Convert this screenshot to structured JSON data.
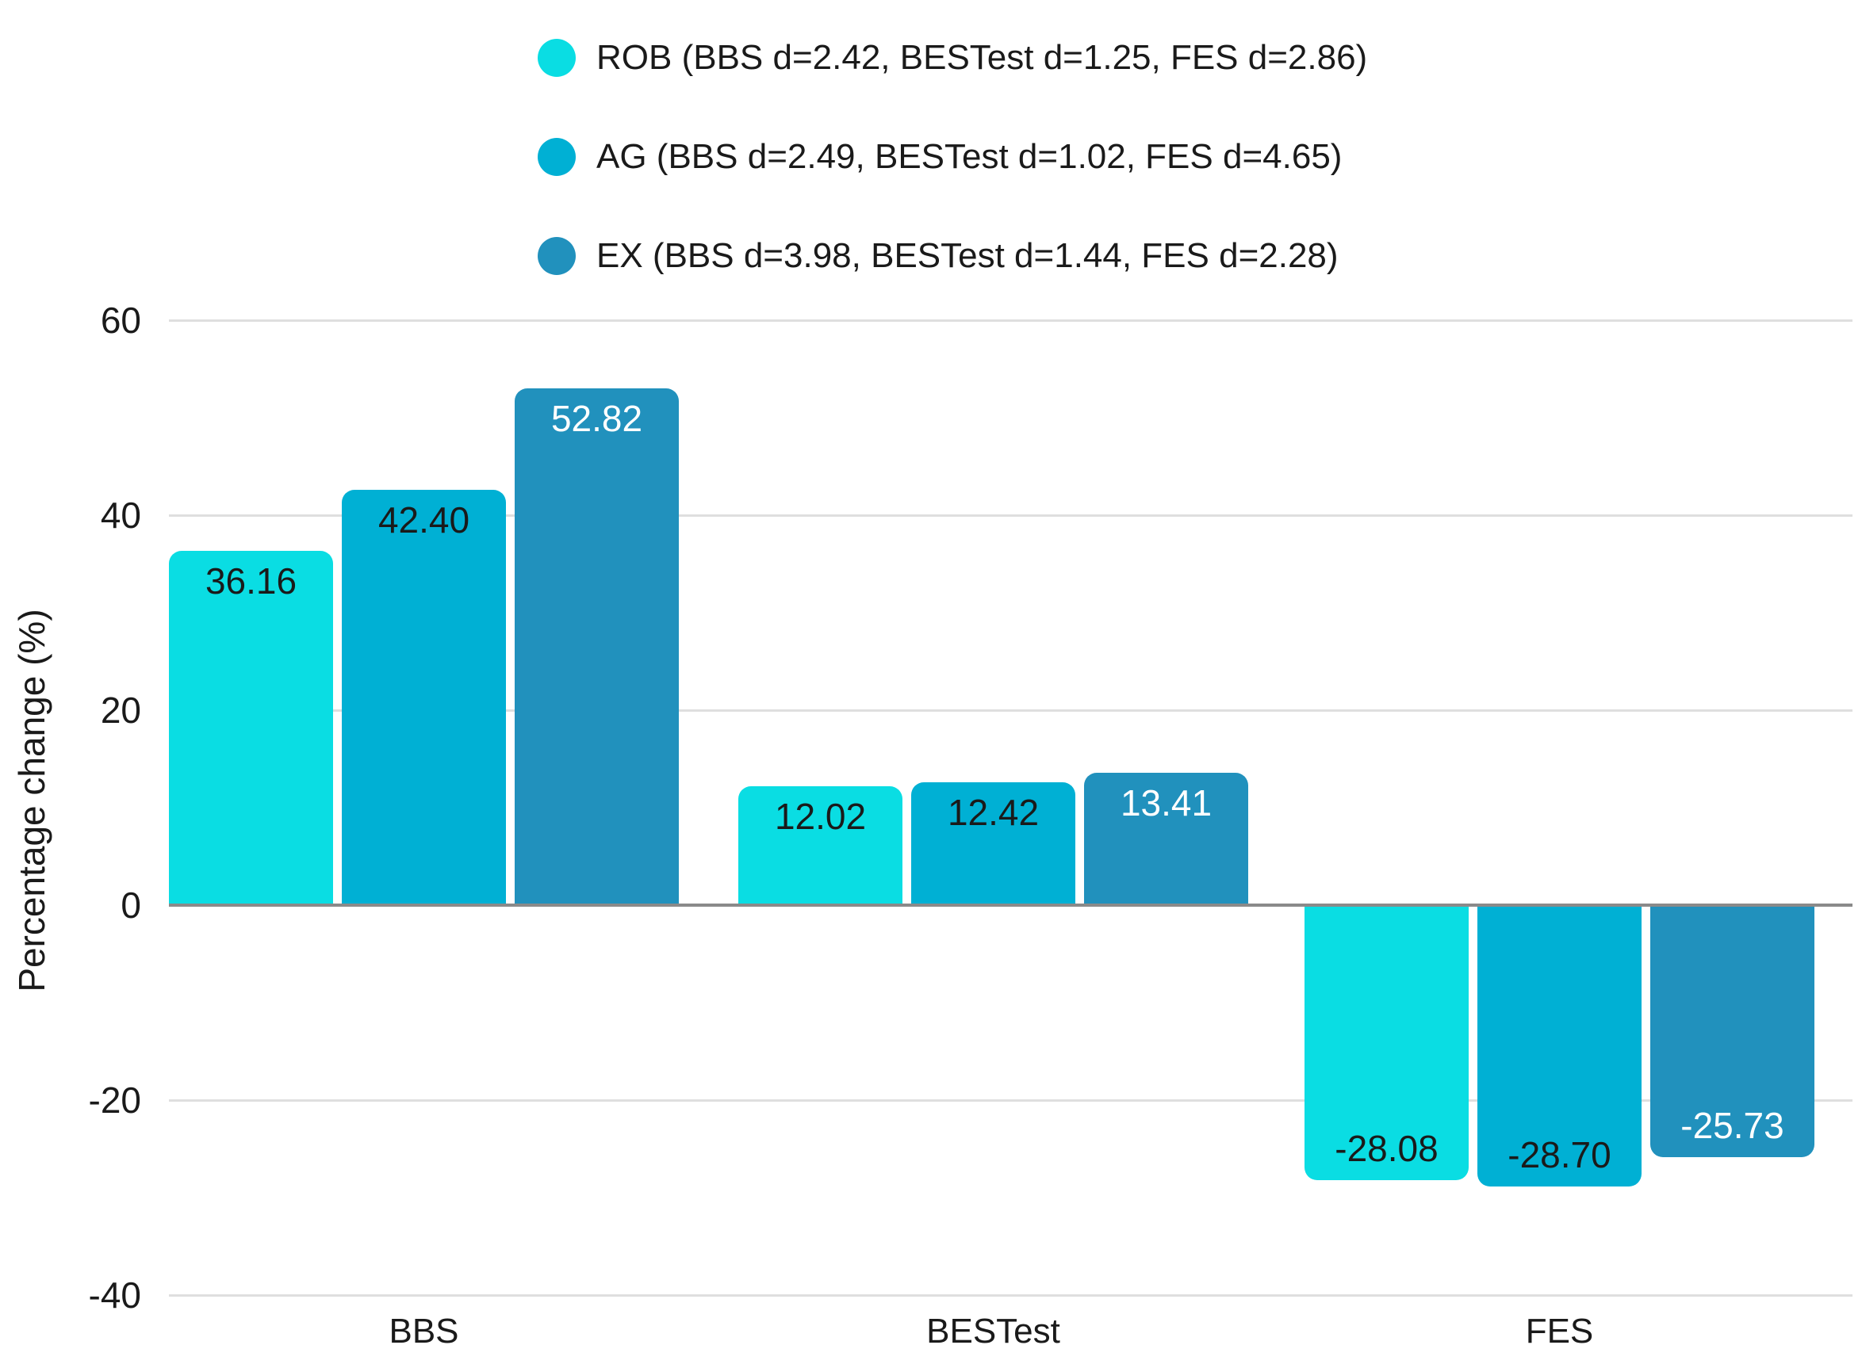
{
  "chart_data": {
    "type": "bar",
    "title": "",
    "categories": [
      "BBS",
      "BESTest",
      "FES"
    ],
    "series": [
      {
        "name": "ROB",
        "legend_label": "ROB (BBS d=2.42, BESTest d=1.25, FES d=2.86)",
        "color": "#0adde3",
        "value_label_color": "#1a1a1a",
        "values": [
          36.16,
          12.02,
          -28.08
        ]
      },
      {
        "name": "AG",
        "legend_label": "AG (BBS d=2.49, BESTest d=1.02, FES d=4.65)",
        "color": "#00b0d4",
        "value_label_color": "#1a1a1a",
        "values": [
          42.4,
          12.42,
          -28.7
        ]
      },
      {
        "name": "EX",
        "legend_label": "EX (BBS d=3.98, BESTest d=1.44, FES d=2.28)",
        "color": "#2191bd",
        "value_label_color": "#ffffff",
        "values": [
          52.82,
          13.41,
          -25.73
        ]
      }
    ],
    "xlabel": "",
    "ylabel": "Percentage change (%)",
    "yticks": [
      60,
      40,
      20,
      0,
      -20,
      -40
    ],
    "ylim": [
      -40,
      60
    ],
    "grid": true,
    "legend_position": "top"
  },
  "colors": {
    "background": "#ffffff",
    "gridline": "#dfdfdf",
    "zero_line": "#8a8a8a",
    "text": "#1a1a1a"
  }
}
